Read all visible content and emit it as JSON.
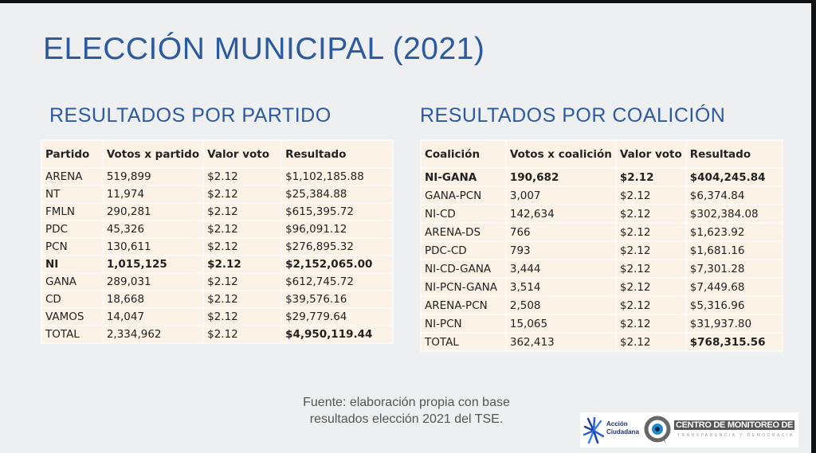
{
  "title": "ELECCIÓN MUNICIPAL (2021)",
  "partido": {
    "subtitle": "RESULTADOS POR PARTIDO",
    "headers": [
      "Partido",
      "Votos x partido",
      "Valor voto",
      "Resultado"
    ],
    "rows": [
      [
        "ARENA",
        "519,899",
        "$2.12",
        "$1,102,185.88"
      ],
      [
        "NT",
        "11,974",
        "$2.12",
        "$25,384.88"
      ],
      [
        "FMLN",
        "290,281",
        "$2.12",
        "$615,395.72"
      ],
      [
        "PDC",
        "45,326",
        "$2.12",
        "$96,091.12"
      ],
      [
        "PCN",
        "130,611",
        "$2.12",
        "$276,895.32"
      ],
      [
        "NI",
        "1,015,125",
        "$2.12",
        "$2,152,065.00"
      ],
      [
        "GANA",
        "289,031",
        "$2.12",
        "$612,745.72"
      ],
      [
        "CD",
        "18,668",
        "$2.12",
        "$39,576.16"
      ],
      [
        "VAMOS",
        "14,047",
        "$2.12",
        "$29,779.64"
      ],
      [
        "TOTAL",
        "2,334,962",
        "$2.12",
        "$4,950,119.44"
      ]
    ]
  },
  "coalicion": {
    "subtitle": "RESULTADOS POR COALICIÓN",
    "headers": [
      "Coalición",
      "Votos x coalición",
      "Valor voto",
      "Resultado"
    ],
    "rows": [
      [
        "NI-GANA",
        "190,682",
        "$2.12",
        "$404,245.84"
      ],
      [
        "GANA-PCN",
        "3,007",
        "$2.12",
        "$6,374.84"
      ],
      [
        "NI-CD",
        "142,634",
        "$2.12",
        "$302,384.08"
      ],
      [
        "ARENA-DS",
        "766",
        "$2.12",
        "$1,623.92"
      ],
      [
        "PDC-CD",
        "793",
        "$2.12",
        "$1,681.16"
      ],
      [
        "NI-CD-GANA",
        "3,444",
        "$2.12",
        "$7,301.28"
      ],
      [
        "NI-PCN-GANA",
        "3,514",
        "$2.12",
        "$7,449.68"
      ],
      [
        "ARENA-PCN",
        "2,508",
        "$2.12",
        "$5,316.96"
      ],
      [
        "NI-PCN",
        "15,065",
        "$2.12",
        "$31,937.80"
      ],
      [
        "TOTAL",
        "362,413",
        "$2.12",
        "$768,315.56"
      ]
    ]
  },
  "source": {
    "line1": "Fuente: elaboración propia con base",
    "line2": "resultados elección 2021 del TSE."
  },
  "logos": {
    "accion_line1": "Acción",
    "accion_line2": "Ciudadana",
    "centro": "CENTRO DE MONITOREO DE",
    "centro_sub": "TRANSPARENCIA Y DEMOCRACIA"
  }
}
